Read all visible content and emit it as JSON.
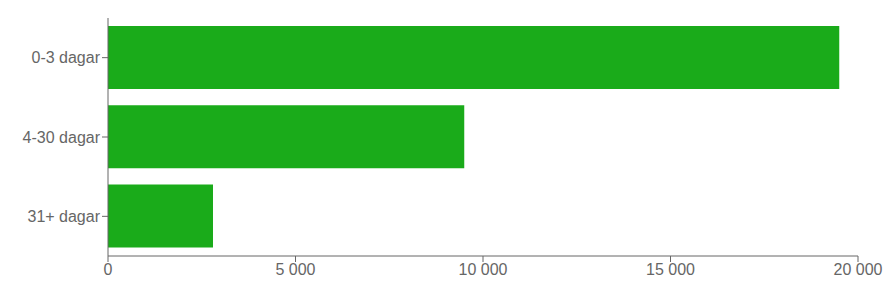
{
  "chart_data": {
    "type": "bar",
    "orientation": "horizontal",
    "categories": [
      "31+ dagar",
      "4-30 dagar",
      "0-3 dagar"
    ],
    "values": [
      2800,
      9500,
      19500
    ],
    "color": "#1aab1a",
    "xlim": [
      0,
      20000
    ],
    "xticks": [
      0,
      {
        "value": 5000,
        "label": "5 000"
      },
      {
        "value": 10000,
        "label": "10 000"
      },
      {
        "value": 15000,
        "label": "15 000"
      },
      {
        "value": 20000,
        "label": "20 000"
      }
    ]
  }
}
